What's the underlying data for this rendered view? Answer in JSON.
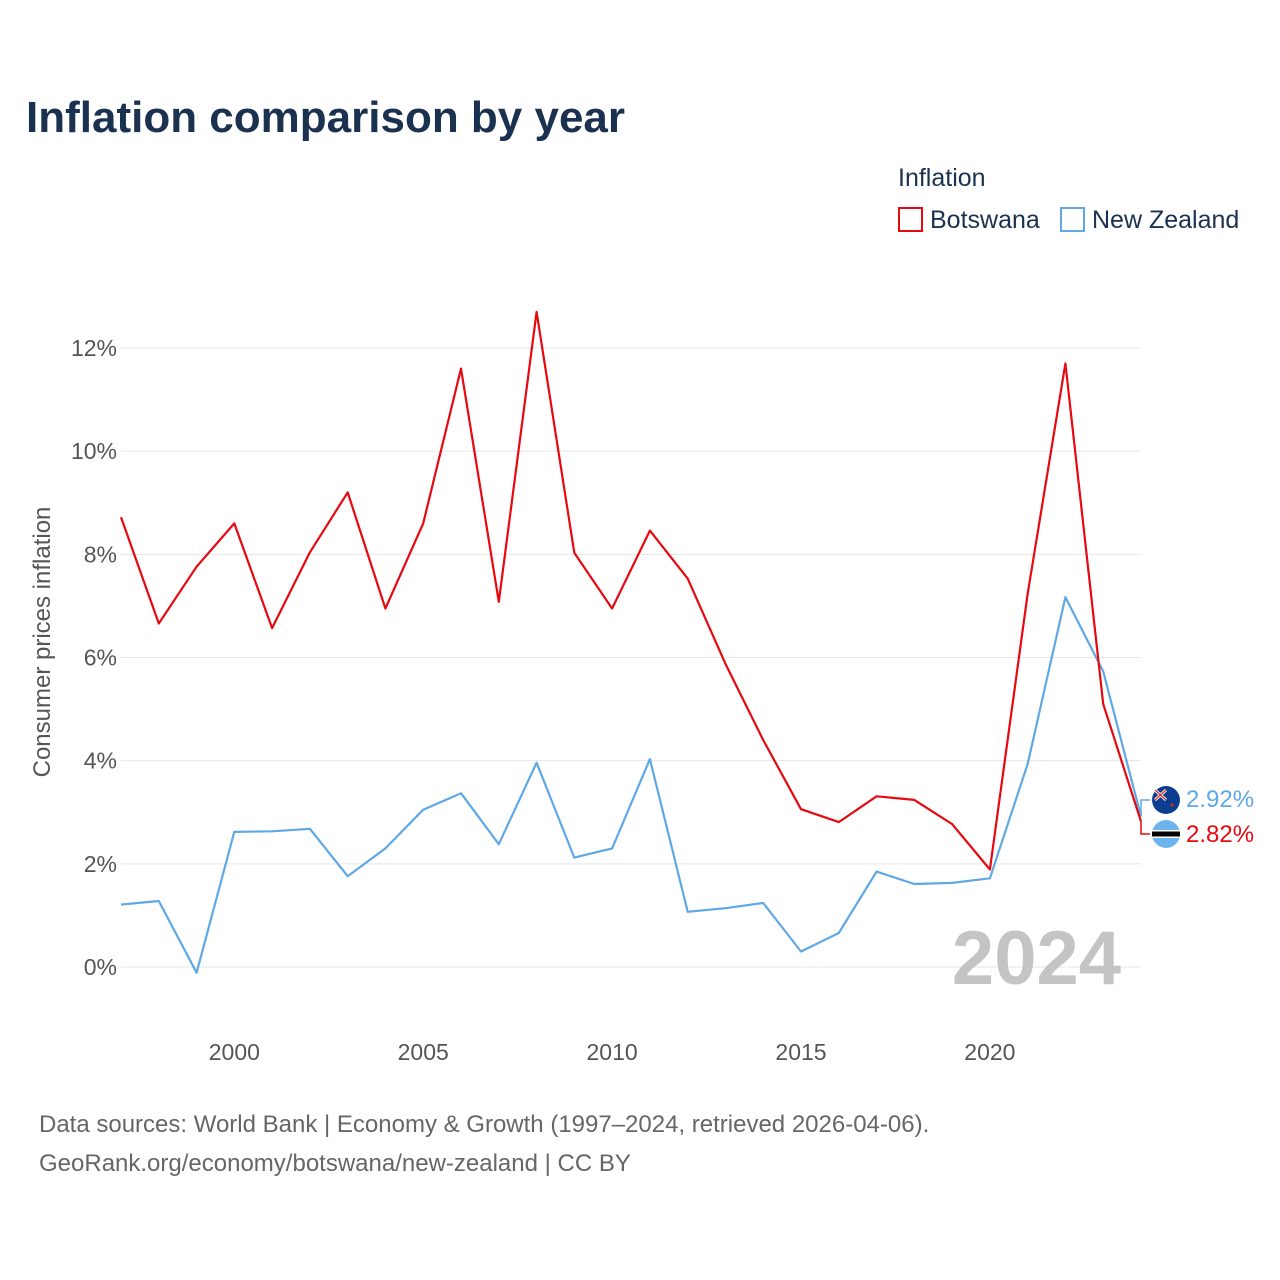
{
  "chart_data": {
    "type": "line",
    "title": "Inflation comparison by year",
    "legend_title": "Inflation",
    "legend_position": "top-right",
    "ylabel": "Consumer prices inflation",
    "xlabel": "",
    "xlim": [
      1997,
      2024
    ],
    "ylim": [
      -1.5,
      13.0
    ],
    "y_ticks": [
      0,
      2,
      4,
      6,
      8,
      10,
      12
    ],
    "y_tick_labels": [
      "0%",
      "2%",
      "4%",
      "6%",
      "8%",
      "10%",
      "12%"
    ],
    "x_ticks": [
      2000,
      2005,
      2010,
      2015,
      2020
    ],
    "x_tick_labels": [
      "2000",
      "2005",
      "2010",
      "2015",
      "2020"
    ],
    "grid": true,
    "watermark_year": "2024",
    "x": [
      1997,
      1998,
      1999,
      2000,
      2001,
      2002,
      2003,
      2004,
      2005,
      2006,
      2007,
      2008,
      2009,
      2010,
      2011,
      2012,
      2013,
      2014,
      2015,
      2016,
      2017,
      2018,
      2019,
      2020,
      2021,
      2022,
      2023,
      2024
    ],
    "series": [
      {
        "name": "Botswana",
        "color": "#e8080f",
        "end_label": "2.82%",
        "flag_icon": "botswana-flag-icon",
        "values": [
          8.72,
          6.66,
          7.76,
          8.6,
          6.57,
          8.04,
          9.2,
          6.95,
          8.6,
          11.6,
          7.08,
          12.7,
          8.03,
          6.95,
          8.46,
          7.53,
          5.88,
          4.4,
          3.06,
          2.81,
          3.31,
          3.24,
          2.77,
          1.89,
          7.24,
          11.7,
          5.1,
          2.82
        ]
      },
      {
        "name": "New Zealand",
        "color": "#5fa8e6",
        "end_label": "2.92%",
        "flag_icon": "new-zealand-flag-icon",
        "values": [
          1.21,
          1.28,
          -0.11,
          2.62,
          2.63,
          2.68,
          1.76,
          2.3,
          3.05,
          3.37,
          2.38,
          3.96,
          2.12,
          2.3,
          4.03,
          1.07,
          1.14,
          1.24,
          0.3,
          0.66,
          1.85,
          1.61,
          1.63,
          1.72,
          3.94,
          7.17,
          5.73,
          2.92
        ]
      }
    ]
  },
  "footer": {
    "source_line": "Data sources: World Bank | Economy & Growth (1997–2024, retrieved 2026-04-06).",
    "credit_line": "GeoRank.org/economy/botswana/new-zealand | CC BY"
  }
}
